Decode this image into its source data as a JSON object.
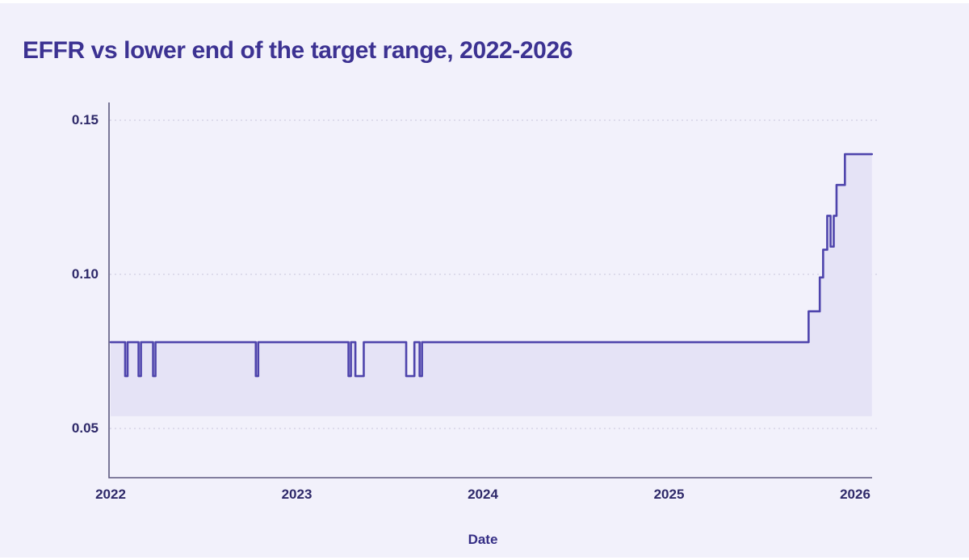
{
  "title": "EFFR vs lower end of the target range, 2022-2026",
  "colors": {
    "background": "#f2f1fb",
    "title_text": "#3c3292",
    "axis_line": "#5d5980",
    "gridline": "#d6d4e6",
    "tick_text": "#2e2969",
    "series_line": "#4e44ac",
    "area_fill": "#e5e3f6"
  },
  "chart_data": {
    "type": "line",
    "variant": "step-area",
    "title": "EFFR vs lower end of the target range, 2022-2026",
    "xlabel": "Date",
    "ylabel": "",
    "x_tick_values": [
      2022,
      2023,
      2024,
      2025,
      2026
    ],
    "x_tick_labels": [
      "2022",
      "2023",
      "2024",
      "2025",
      "2026"
    ],
    "y_tick_values": [
      0.05,
      0.1,
      0.15
    ],
    "y_tick_labels": [
      "0.05",
      "0.10",
      "0.15"
    ],
    "xlim": [
      2021.99,
      2026.13
    ],
    "ylim": [
      0.034,
      0.156
    ],
    "grid": "horizontal-dotted",
    "legend_position": "none",
    "series": [
      {
        "name": "EFFR",
        "type": "step-line",
        "color": "#4e44ac",
        "fill_color": "#e5e3f6",
        "fill_to_baseline": 0.054,
        "points": [
          [
            2022.0,
            0.078
          ],
          [
            2022.078,
            0.078
          ],
          [
            2022.078,
            0.067
          ],
          [
            2022.091,
            0.067
          ],
          [
            2022.091,
            0.078
          ],
          [
            2022.15,
            0.078
          ],
          [
            2022.15,
            0.067
          ],
          [
            2022.163,
            0.067
          ],
          [
            2022.163,
            0.078
          ],
          [
            2022.228,
            0.078
          ],
          [
            2022.228,
            0.067
          ],
          [
            2022.241,
            0.067
          ],
          [
            2022.241,
            0.078
          ],
          [
            2022.78,
            0.078
          ],
          [
            2022.78,
            0.067
          ],
          [
            2022.793,
            0.067
          ],
          [
            2022.793,
            0.078
          ],
          [
            2023.278,
            0.078
          ],
          [
            2023.278,
            0.067
          ],
          [
            2023.291,
            0.067
          ],
          [
            2023.291,
            0.078
          ],
          [
            2023.315,
            0.078
          ],
          [
            2023.315,
            0.067
          ],
          [
            2023.36,
            0.067
          ],
          [
            2023.36,
            0.078
          ],
          [
            2023.588,
            0.078
          ],
          [
            2023.588,
            0.067
          ],
          [
            2023.632,
            0.067
          ],
          [
            2023.632,
            0.078
          ],
          [
            2023.66,
            0.078
          ],
          [
            2023.66,
            0.067
          ],
          [
            2023.673,
            0.067
          ],
          [
            2023.673,
            0.078
          ],
          [
            2025.75,
            0.078
          ],
          [
            2025.75,
            0.088
          ],
          [
            2025.81,
            0.088
          ],
          [
            2025.81,
            0.099
          ],
          [
            2025.828,
            0.099
          ],
          [
            2025.828,
            0.108
          ],
          [
            2025.85,
            0.108
          ],
          [
            2025.85,
            0.119
          ],
          [
            2025.868,
            0.119
          ],
          [
            2025.868,
            0.109
          ],
          [
            2025.885,
            0.109
          ],
          [
            2025.885,
            0.119
          ],
          [
            2025.9,
            0.119
          ],
          [
            2025.9,
            0.129
          ],
          [
            2025.945,
            0.129
          ],
          [
            2025.945,
            0.139
          ],
          [
            2026.09,
            0.139
          ]
        ]
      },
      {
        "name": "Lower end of the target range",
        "type": "area-baseline",
        "value": 0.054
      }
    ]
  }
}
